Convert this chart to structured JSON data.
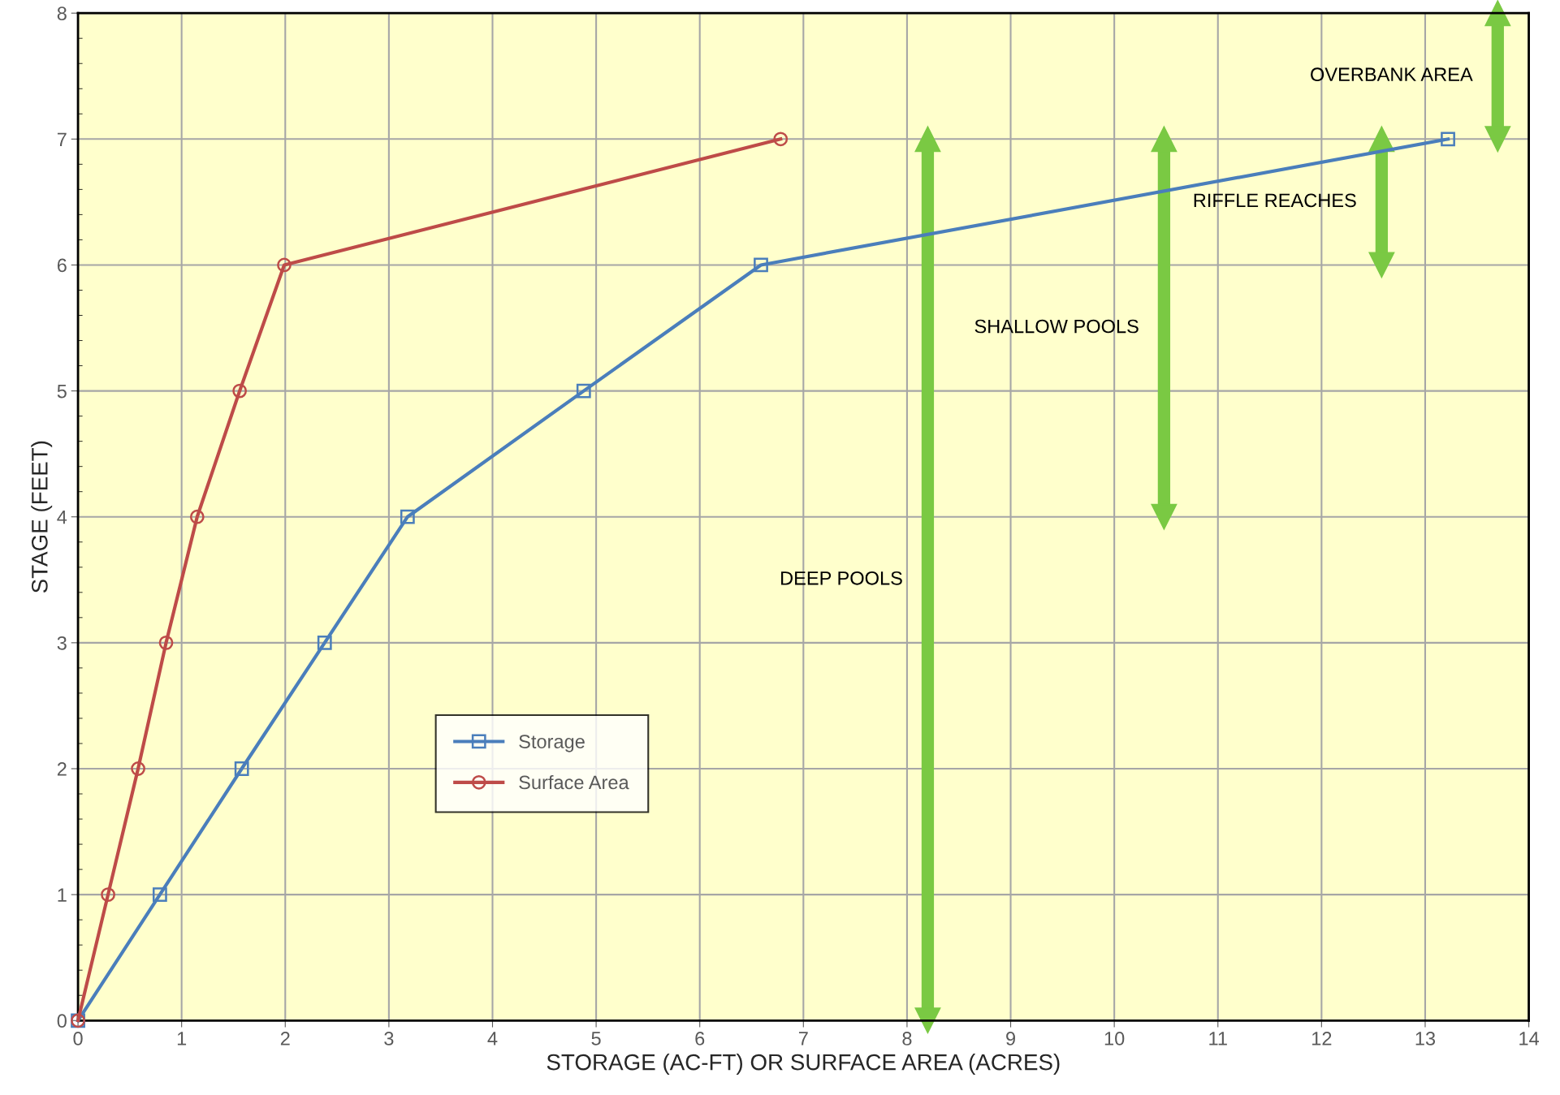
{
  "chart_data": {
    "type": "line",
    "xlabel": "STORAGE (AC-FT) OR SURFACE AREA (ACRES)",
    "ylabel": "STAGE (FEET)",
    "series": [
      {
        "name": "Storage",
        "color": "#4a7ebb",
        "marker": "square",
        "x": [
          0,
          0.79,
          1.58,
          2.38,
          3.18,
          4.88,
          6.59,
          13.22
        ],
        "values": [
          0,
          1,
          2,
          3,
          4,
          5,
          6,
          7
        ]
      },
      {
        "name": "Surface Area",
        "color": "#be4b48",
        "marker": "circle",
        "x": [
          0,
          0.29,
          0.58,
          0.85,
          1.15,
          1.56,
          1.99,
          6.78
        ],
        "values": [
          0,
          1,
          2,
          3,
          4,
          5,
          6,
          7
        ]
      },
      {
        "color": "#7ac943",
        "marker": "triangle",
        "x": [
          8.2,
          8.2
        ],
        "values": [
          0,
          7
        ]
      },
      {
        "color": "#7ac943",
        "marker": "triangle",
        "x": [
          10.48,
          10.48
        ],
        "values": [
          4,
          7
        ]
      },
      {
        "color": "#7ac943",
        "marker": "triangle",
        "x": [
          12.58,
          12.58
        ],
        "values": [
          6,
          7
        ]
      },
      {
        "color": "#7ac943",
        "marker": "triangle",
        "x": [
          13.7,
          13.7
        ],
        "values": [
          7,
          8
        ]
      }
    ],
    "xlim": [
      0,
      14
    ],
    "xticks": [
      0,
      1,
      2,
      3,
      4,
      5,
      6,
      7,
      8,
      9,
      10,
      11,
      12,
      13,
      14
    ],
    "ylim": [
      0,
      8
    ],
    "yticks": [
      0,
      1,
      2,
      3,
      4,
      5,
      6,
      7,
      8
    ],
    "grid": true,
    "legend": "center",
    "line_style": "solid",
    "annotations": [
      "DEEP POOLS",
      "SHALLOW POOLS",
      "RIFFLE REACHES",
      "OVERBANK AREA"
    ]
  }
}
